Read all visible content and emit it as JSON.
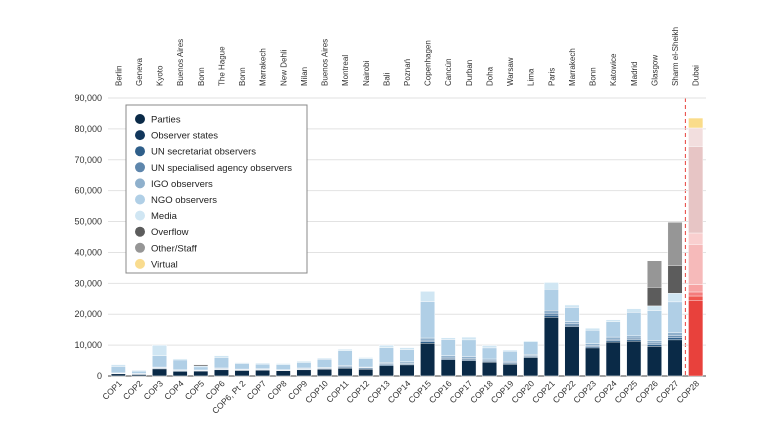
{
  "chart_data": {
    "type": "bar",
    "stacked": true,
    "categories": [
      "COP1",
      "COP2",
      "COP3",
      "COP4",
      "COP5",
      "COP6",
      "COP6, Pt 2",
      "COP7",
      "COP8",
      "COP9",
      "COP10",
      "COP11",
      "COP12",
      "COP13",
      "COP14",
      "COP15",
      "COP16",
      "COP17",
      "COP18",
      "COP19",
      "COP20",
      "COP21",
      "COP22",
      "COP23",
      "COP24",
      "COP25",
      "COP26",
      "COP27",
      "COP28"
    ],
    "locations": [
      "Berlin",
      "Geneva",
      "Kyoto",
      "Buenos Aires",
      "Bonn",
      "The Hague",
      "Bonn",
      "Marrakech",
      "New Dehli",
      "Milan",
      "Buenos Aires",
      "Montreal",
      "Nairobi",
      "Bali",
      "Poznań",
      "Copenhagen",
      "Cancún",
      "Durban",
      "Doha",
      "Warsaw",
      "Lima",
      "Paris",
      "Marrakech",
      "Bonn",
      "Katowice",
      "Madrid",
      "Glasgow",
      "Sharm el-Sheikh",
      "Dubai"
    ],
    "ylim": [
      0,
      90000
    ],
    "yticks": [
      "0",
      "10,000",
      "20,000",
      "30,000",
      "40,000",
      "50,000",
      "60,000",
      "70,000",
      "80,000",
      "90,000"
    ],
    "ytick_values": [
      0,
      10000,
      20000,
      30000,
      40000,
      50000,
      60000,
      70000,
      80000,
      90000
    ],
    "legend_position": "top-left",
    "highlight_last": true,
    "highlight_palette": [
      "#e8413c",
      "#f0564f",
      "#f47c7c",
      "#f7a3a3",
      "#f6baba",
      "#f9cfcf",
      "#e7c5c5",
      "#f2dede",
      "#fadc8a"
    ],
    "series": [
      {
        "name": "Parties",
        "color": "#0a2a47",
        "values": [
          700,
          500,
          2300,
          1500,
          1600,
          2000,
          1800,
          1900,
          1700,
          2000,
          2200,
          2500,
          2200,
          3300,
          3600,
          10600,
          5300,
          5000,
          4500,
          3800,
          6000,
          19000,
          16000,
          9100,
          11000,
          11300,
          9600,
          11700,
          24500
        ]
      },
      {
        "name": "Observer states",
        "color": "#12375c",
        "values": [
          0,
          0,
          0,
          0,
          0,
          0,
          0,
          0,
          0,
          0,
          0,
          0,
          0,
          0,
          0,
          0,
          0,
          0,
          0,
          0,
          0,
          0,
          0,
          0,
          0,
          0,
          0,
          0,
          0
        ]
      },
      {
        "name": "UN secretariat observers",
        "color": "#2f5f8a",
        "values": [
          100,
          100,
          200,
          200,
          150,
          200,
          150,
          150,
          150,
          200,
          200,
          300,
          300,
          400,
          300,
          500,
          400,
          400,
          300,
          300,
          300,
          700,
          500,
          400,
          500,
          500,
          600,
          700,
          1400
        ]
      },
      {
        "name": "UN specialised agency observers",
        "color": "#5e86ac",
        "values": [
          100,
          100,
          200,
          100,
          100,
          200,
          100,
          100,
          100,
          200,
          200,
          300,
          200,
          300,
          300,
          500,
          400,
          300,
          300,
          300,
          300,
          600,
          400,
          400,
          400,
          500,
          500,
          600,
          1300
        ]
      },
      {
        "name": "IGO observers",
        "color": "#8fb0cc",
        "values": [
          100,
          100,
          200,
          200,
          100,
          200,
          200,
          200,
          100,
          200,
          200,
          300,
          200,
          400,
          400,
          700,
          500,
          600,
          400,
          400,
          400,
          1000,
          700,
          600,
          700,
          700,
          800,
          1000,
          2400
        ]
      },
      {
        "name": "NGO observers",
        "color": "#b0cfe6",
        "values": [
          2100,
          800,
          3700,
          3200,
          1000,
          3400,
          1800,
          1500,
          1600,
          1800,
          2600,
          4800,
          2700,
          4800,
          3900,
          11800,
          5200,
          5400,
          3600,
          3200,
          4100,
          6800,
          4600,
          4300,
          5000,
          7600,
          9700,
          10000,
          13000
        ]
      },
      {
        "name": "Media",
        "color": "#d0e6f3",
        "values": [
          600,
          300,
          3400,
          400,
          350,
          600,
          300,
          350,
          400,
          400,
          400,
          500,
          400,
          800,
          700,
          3300,
          600,
          900,
          800,
          400,
          300,
          2200,
          800,
          700,
          600,
          1200,
          1500,
          2800,
          3700
        ]
      },
      {
        "name": "Overflow",
        "color": "#000000",
        "values": [
          0,
          0,
          0,
          0,
          300,
          0,
          0,
          0,
          0,
          0,
          0,
          0,
          0,
          0,
          0,
          0,
          0,
          0,
          0,
          0,
          0,
          0,
          0,
          0,
          0,
          0,
          0,
          0,
          0
        ]
      },
      {
        "name": "Overflow",
        "color": "#5c5c5c",
        "values": [
          0,
          0,
          0,
          0,
          0,
          0,
          0,
          0,
          0,
          0,
          0,
          0,
          0,
          0,
          0,
          0,
          0,
          0,
          0,
          0,
          0,
          0,
          0,
          0,
          0,
          0,
          6000,
          9000,
          28000
        ]
      },
      {
        "name": "Other/Staff",
        "color": "#969696",
        "values": [
          0,
          0,
          0,
          0,
          0,
          0,
          0,
          0,
          0,
          0,
          0,
          0,
          0,
          0,
          0,
          0,
          0,
          0,
          0,
          0,
          0,
          0,
          0,
          0,
          0,
          0,
          8600,
          14000,
          6000
        ]
      },
      {
        "name": "Virtual",
        "color": "#f9dc8f",
        "values": [
          0,
          0,
          0,
          0,
          0,
          0,
          0,
          0,
          0,
          0,
          0,
          0,
          0,
          0,
          0,
          0,
          0,
          0,
          0,
          0,
          0,
          0,
          0,
          0,
          0,
          0,
          0,
          0,
          3200
        ]
      }
    ],
    "legend": [
      {
        "name": "Parties",
        "color": "#0a2a47"
      },
      {
        "name": "Observer states",
        "color": "#12375c"
      },
      {
        "name": "UN secretariat observers",
        "color": "#2f5f8a"
      },
      {
        "name": "UN specialised agency observers",
        "color": "#5e86ac"
      },
      {
        "name": "IGO observers",
        "color": "#8fb0cc"
      },
      {
        "name": "NGO observers",
        "color": "#b0cfe6"
      },
      {
        "name": "Media",
        "color": "#d0e6f3"
      },
      {
        "name": "Overflow",
        "color": "#5c5c5c"
      },
      {
        "name": "Other/Staff",
        "color": "#969696"
      },
      {
        "name": "Virtual",
        "color": "#f9dc8f"
      }
    ]
  }
}
